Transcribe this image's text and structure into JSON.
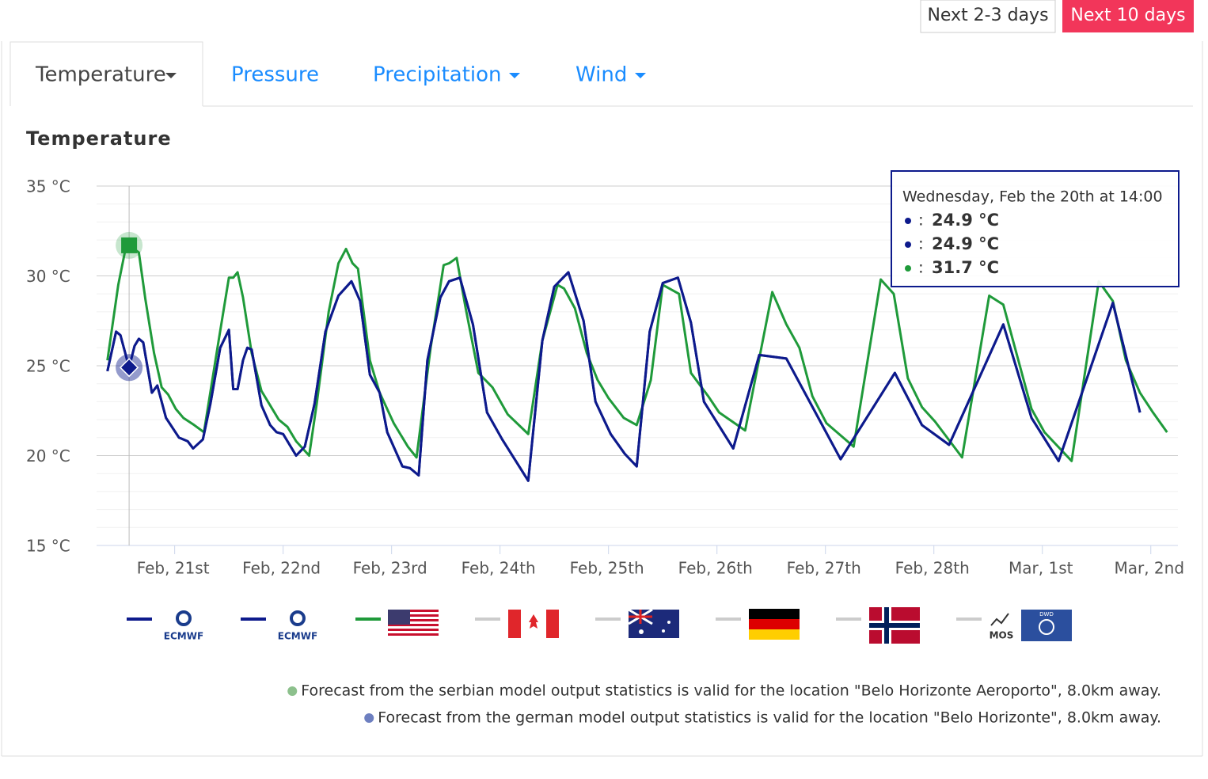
{
  "buttons": [
    "Next 2-3 days",
    "Next 10 days"
  ],
  "tabs": [
    "Temperature",
    "Pressure",
    "Precipitation",
    "Wind"
  ],
  "chart_data": {
    "type": "line",
    "title": "Temperature",
    "xlim": [
      0.28,
      10.25
    ],
    "xticks": [
      {
        "value": 1,
        "label": "Feb, 21st"
      },
      {
        "value": 2,
        "label": "Feb, 22nd"
      },
      {
        "value": 3,
        "label": "Feb, 23rd"
      },
      {
        "value": 4,
        "label": "Feb, 24th"
      },
      {
        "value": 5,
        "label": "Feb, 25th"
      },
      {
        "value": 6,
        "label": "Feb, 26th"
      },
      {
        "value": 7,
        "label": "Feb, 27th"
      },
      {
        "value": 8,
        "label": "Feb, 28th"
      },
      {
        "value": 9,
        "label": "Mar, 1st"
      },
      {
        "value": 10,
        "label": "Mar, 2nd"
      }
    ],
    "ylim": [
      15,
      35
    ],
    "yticks": [
      {
        "value": 15,
        "label": "15 °C"
      },
      {
        "value": 20,
        "label": "20 °C"
      },
      {
        "value": 25,
        "label": "25 °C"
      },
      {
        "value": 30,
        "label": "30 °C"
      },
      {
        "value": 35,
        "label": "35 °C"
      }
    ],
    "minor_yticks": [
      16,
      17,
      18,
      19,
      21,
      22,
      23,
      24,
      26,
      27,
      28,
      29,
      31,
      32,
      33,
      34
    ],
    "grid": true,
    "cursor_x": 0.58,
    "series": [
      {
        "color": "#0d1a8c",
        "x": [
          0.38,
          0.46,
          0.5,
          0.58,
          0.63,
          0.67,
          0.71,
          0.79,
          0.84,
          0.92,
          1.04,
          1.12,
          1.17,
          1.26,
          1.33,
          1.42,
          1.5,
          1.54,
          1.58,
          1.63,
          1.67,
          1.71,
          1.8,
          1.88,
          1.94,
          2.0,
          2.06,
          2.12,
          2.2,
          2.29,
          2.39,
          2.51,
          2.63,
          2.71,
          2.8,
          2.89,
          2.96,
          3.1,
          3.17,
          3.25,
          3.33,
          3.45,
          3.53,
          3.63,
          3.75,
          3.88,
          4.02,
          4.26,
          4.39,
          4.5,
          4.63,
          4.77,
          4.88,
          5.02,
          5.15,
          5.26,
          5.38,
          5.5,
          5.64,
          5.76,
          5.88,
          6.15,
          6.39,
          6.64,
          7.14,
          7.64,
          7.89,
          8.14,
          8.64,
          8.9,
          9.15,
          9.65,
          9.9
        ],
        "values": [
          24.7,
          26.9,
          26.7,
          24.9,
          26.1,
          26.5,
          26.3,
          23.5,
          23.9,
          22.1,
          21.0,
          20.8,
          20.4,
          20.9,
          22.9,
          26.0,
          27.0,
          23.7,
          23.7,
          25.3,
          26.0,
          25.9,
          22.8,
          21.7,
          21.3,
          21.2,
          20.6,
          20.0,
          20.5,
          22.9,
          26.9,
          28.9,
          29.7,
          28.6,
          24.5,
          23.5,
          21.3,
          19.4,
          19.3,
          18.9,
          25.3,
          28.8,
          29.7,
          29.9,
          27.3,
          22.4,
          20.9,
          18.6,
          26.4,
          29.4,
          30.2,
          27.5,
          23.0,
          21.2,
          20.1,
          19.4,
          26.9,
          29.6,
          29.9,
          27.4,
          23.0,
          20.4,
          25.6,
          25.4,
          19.8,
          24.6,
          21.7,
          20.6,
          27.3,
          22.1,
          19.7,
          28.5,
          22.4
        ]
      },
      {
        "color": "#0d1a8c",
        "x": [
          0.38,
          0.46,
          0.5,
          0.58,
          0.63,
          0.67,
          0.71,
          0.79,
          0.84,
          0.92,
          1.04,
          1.12,
          1.17,
          1.26,
          1.33,
          1.42,
          1.5,
          1.54,
          1.58,
          1.63,
          1.67,
          1.71,
          1.8,
          1.88,
          1.94,
          2.0,
          2.06,
          2.12,
          2.2,
          2.29,
          2.39,
          2.51,
          2.63,
          2.71,
          2.8,
          2.89,
          2.96,
          3.1,
          3.17,
          3.25,
          3.33,
          3.45,
          3.53,
          3.63,
          3.75,
          3.88,
          4.02,
          4.26,
          4.39,
          4.5,
          4.63,
          4.77,
          4.88,
          5.02,
          5.15,
          5.26,
          5.38,
          5.5,
          5.64,
          5.76,
          5.88,
          6.15,
          6.39,
          6.64,
          7.14,
          7.64,
          7.89,
          8.14,
          8.64,
          8.9,
          9.15,
          9.65,
          9.9
        ],
        "values": [
          24.7,
          26.9,
          26.7,
          24.9,
          26.1,
          26.5,
          26.3,
          23.5,
          23.9,
          22.1,
          21.0,
          20.8,
          20.4,
          20.9,
          22.9,
          26.0,
          27.0,
          23.7,
          23.7,
          25.3,
          26.0,
          25.9,
          22.8,
          21.7,
          21.3,
          21.2,
          20.6,
          20.0,
          20.5,
          22.9,
          26.9,
          28.9,
          29.7,
          28.6,
          24.5,
          23.5,
          21.3,
          19.4,
          19.3,
          18.9,
          25.3,
          28.8,
          29.7,
          29.9,
          27.3,
          22.4,
          20.9,
          18.6,
          26.4,
          29.4,
          30.2,
          27.5,
          23.0,
          21.2,
          20.1,
          19.4,
          26.9,
          29.6,
          29.9,
          27.4,
          23.0,
          20.4,
          25.6,
          25.4,
          19.8,
          24.6,
          21.7,
          20.6,
          27.3,
          22.1,
          19.7,
          28.5,
          22.4
        ]
      },
      {
        "color": "#1f9a3a",
        "x": [
          0.38,
          0.48,
          0.54,
          0.58,
          0.67,
          0.73,
          0.81,
          0.88,
          0.94,
          1.01,
          1.08,
          1.18,
          1.27,
          1.4,
          1.5,
          1.54,
          1.58,
          1.63,
          1.71,
          1.8,
          1.88,
          1.96,
          2.04,
          2.12,
          2.24,
          2.31,
          2.42,
          2.51,
          2.58,
          2.64,
          2.69,
          2.8,
          2.89,
          3.02,
          3.15,
          3.23,
          3.36,
          3.48,
          3.53,
          3.6,
          3.68,
          3.8,
          3.93,
          4.07,
          4.26,
          4.39,
          4.53,
          4.59,
          4.69,
          4.8,
          4.9,
          5.0,
          5.14,
          5.26,
          5.39,
          5.5,
          5.65,
          5.76,
          5.92,
          6.02,
          6.26,
          6.51,
          6.64,
          6.76,
          6.88,
          7.01,
          7.26,
          7.51,
          7.63,
          7.76,
          7.89,
          8.01,
          8.26,
          8.51,
          8.64,
          8.9,
          9.02,
          9.27,
          9.52,
          9.65,
          9.77,
          9.9,
          10.02,
          10.15
        ],
        "values": [
          25.3,
          29.5,
          31.3,
          31.7,
          31.3,
          28.7,
          25.7,
          23.8,
          23.4,
          22.6,
          22.1,
          21.7,
          21.3,
          26.2,
          29.9,
          29.9,
          30.2,
          28.8,
          25.7,
          23.6,
          22.8,
          22.0,
          21.6,
          20.8,
          20.0,
          22.9,
          28.0,
          30.7,
          31.5,
          30.7,
          30.4,
          25.3,
          23.5,
          21.8,
          20.5,
          19.9,
          26.0,
          30.6,
          30.7,
          31.0,
          28.3,
          24.6,
          23.8,
          22.3,
          21.2,
          26.4,
          29.5,
          29.3,
          28.2,
          25.7,
          24.2,
          23.2,
          22.1,
          21.7,
          24.2,
          29.5,
          29.0,
          24.6,
          23.3,
          22.4,
          21.4,
          29.1,
          27.3,
          26.0,
          23.3,
          21.8,
          20.5,
          29.8,
          29.0,
          24.3,
          22.7,
          21.9,
          19.9,
          28.9,
          28.4,
          22.6,
          21.3,
          19.7,
          29.7,
          28.6,
          25.3,
          23.5,
          22.4,
          21.3
        ]
      }
    ],
    "legend_labels": [
      "ECMWF",
      "ECMWF",
      "MOS",
      "DWD"
    ],
    "tooltip": {
      "title": "Wednesday, Feb the 20th at 14:00",
      "separator": ":",
      "rows": [
        {
          "color": "#0d1a8c",
          "label": "24.9 °C"
        },
        {
          "color": "#0d1a8c",
          "label": "24.9 °C"
        },
        {
          "color": "#1f9a3a",
          "label": "31.7 °C"
        }
      ]
    }
  },
  "footnotes": [
    {
      "color": "#8cc08c",
      "text": "Forecast from the serbian model output statistics is valid for the location \"Belo Horizonte Aeroporto\", 8.0km away."
    },
    {
      "color": "#6d7fc0",
      "text": "Forecast from the german model output statistics is valid for the location \"Belo Horizonte\", 8.0km away."
    }
  ]
}
